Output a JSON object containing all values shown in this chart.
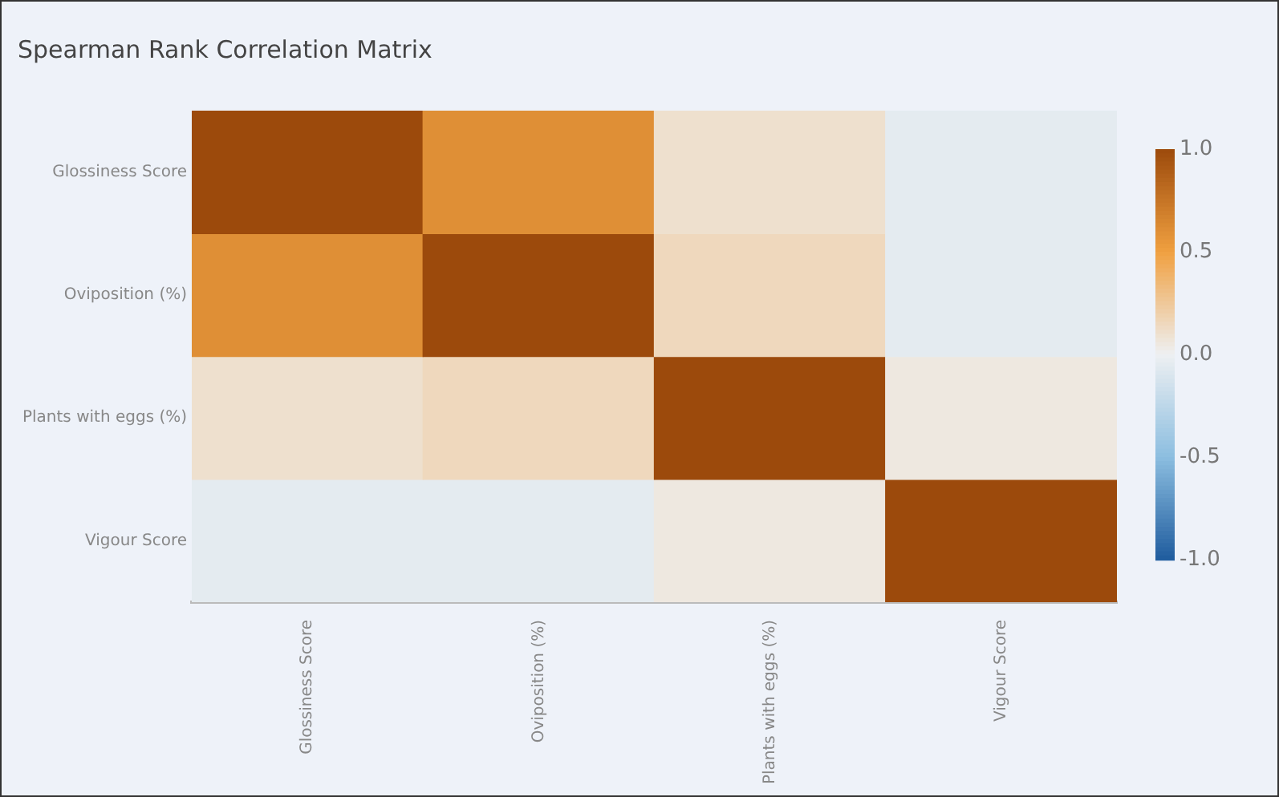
{
  "chart_data": {
    "type": "heatmap",
    "title": "Spearman Rank Correlation Matrix",
    "categories": [
      "Glossiness Score",
      "Oviposition (%)",
      "Plants with eggs (%)",
      "Vigour Score"
    ],
    "y_categories": [
      "Glossiness Score",
      "Oviposition (%)",
      "Plants with eggs (%)",
      "Vigour Score"
    ],
    "cells": [
      [
        1.0,
        0.6,
        0.1,
        -0.05
      ],
      [
        0.6,
        1.0,
        0.15,
        -0.05
      ],
      [
        0.1,
        0.15,
        1.0,
        0.05
      ],
      [
        -0.05,
        -0.05,
        0.05,
        1.0
      ]
    ],
    "clim": [
      -1.0,
      1.0
    ],
    "cticks": [
      {
        "value": -1,
        "label": "-1.0"
      },
      {
        "value": -0.5,
        "label": "-0.5"
      },
      {
        "value": 0,
        "label": "0.0"
      },
      {
        "value": 0.5,
        "label": "0.5"
      },
      {
        "value": 1,
        "label": "1.0"
      }
    ]
  }
}
